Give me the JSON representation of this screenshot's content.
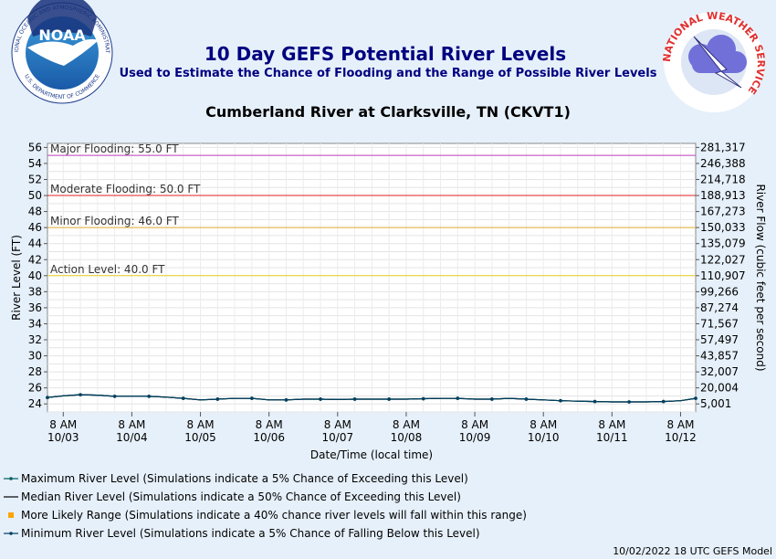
{
  "header": {
    "title": "10 Day GEFS Potential River Levels",
    "subtitle": "Used to Estimate the Chance of Flooding and the Range of Possible River Levels",
    "location": "Cumberland River at Clarksville, TN (CKVT1)"
  },
  "logos": {
    "noaa_text": "NOAA",
    "noaa_ring": "NATIONAL OCEANIC AND ATMOSPHERIC ADMINISTRATION",
    "noaa_ring_bottom": "U.S. DEPARTMENT OF COMMERCE",
    "nws_ring": "NATIONAL WEATHER SERVICE"
  },
  "footer": {
    "model_run": "10/02/2022 18 UTC GEFS Model"
  },
  "colors": {
    "major": "#c040c0",
    "moderate": "#e02020",
    "minor": "#e0b030",
    "action": "#e8d020",
    "series": "#006060",
    "range": "#ffa500"
  },
  "chart_data": {
    "type": "line",
    "xlabel": "Date/Time (local time)",
    "ylabel": "River Level (FT)",
    "ylabel_right": "River Flow (cubic feet per second)",
    "ylim": [
      23,
      56.5
    ],
    "yticks": [
      24,
      26,
      28,
      30,
      32,
      34,
      36,
      38,
      40,
      42,
      44,
      46,
      48,
      50,
      52,
      54,
      56
    ],
    "right_ticks": [
      {
        "stage": 24,
        "label": "5,001"
      },
      {
        "stage": 26,
        "label": "20,004"
      },
      {
        "stage": 28,
        "label": "32,007"
      },
      {
        "stage": 30,
        "label": "43,857"
      },
      {
        "stage": 32,
        "label": "57,497"
      },
      {
        "stage": 34,
        "label": "71,567"
      },
      {
        "stage": 36,
        "label": "87,274"
      },
      {
        "stage": 38,
        "label": "99,266"
      },
      {
        "stage": 40,
        "label": "110,907"
      },
      {
        "stage": 42,
        "label": "122,027"
      },
      {
        "stage": 44,
        "label": "135,079"
      },
      {
        "stage": 46,
        "label": "150,033"
      },
      {
        "stage": 48,
        "label": "167,273"
      },
      {
        "stage": 50,
        "label": "188,913"
      },
      {
        "stage": 52,
        "label": "214,718"
      },
      {
        "stage": 54,
        "label": "246,388"
      },
      {
        "stage": 56,
        "label": "281,317"
      }
    ],
    "x_range_days": [
      -0.23,
      9.22
    ],
    "xticks": [
      {
        "day": 0,
        "line1": "8 AM",
        "line2": "10/03"
      },
      {
        "day": 1,
        "line1": "8 AM",
        "line2": "10/04"
      },
      {
        "day": 2,
        "line1": "8 AM",
        "line2": "10/05"
      },
      {
        "day": 3,
        "line1": "8 AM",
        "line2": "10/06"
      },
      {
        "day": 4,
        "line1": "8 AM",
        "line2": "10/07"
      },
      {
        "day": 5,
        "line1": "8 AM",
        "line2": "10/08"
      },
      {
        "day": 6,
        "line1": "8 AM",
        "line2": "10/09"
      },
      {
        "day": 7,
        "line1": "8 AM",
        "line2": "10/10"
      },
      {
        "day": 8,
        "line1": "8 AM",
        "line2": "10/11"
      },
      {
        "day": 9,
        "line1": "8 AM",
        "line2": "10/12"
      }
    ],
    "thresholds": [
      {
        "name": "major",
        "label": "Major Flooding: 55.0 FT",
        "value": 55.0
      },
      {
        "name": "moderate",
        "label": "Moderate Flooding: 50.0 FT",
        "value": 50.0
      },
      {
        "name": "minor",
        "label": "Minor Flooding: 46.0 FT",
        "value": 46.0
      },
      {
        "name": "action",
        "label": "Action Level: 40.0 FT",
        "value": 40.0
      }
    ],
    "series": [
      {
        "name": "Maximum River Level (Simulations indicate a 5% Chance of Exceeding this Level)",
        "marker": "dot",
        "x": [
          -0.23,
          0.0,
          0.25,
          0.5,
          0.75,
          1.0,
          1.25,
          1.5,
          1.75,
          2.0,
          2.25,
          2.5,
          2.75,
          3.0,
          3.25,
          3.5,
          3.75,
          4.0,
          4.25,
          4.5,
          4.75,
          5.0,
          5.25,
          5.5,
          5.75,
          6.0,
          6.25,
          6.5,
          6.75,
          7.0,
          7.25,
          7.5,
          7.75,
          8.0,
          8.25,
          8.5,
          8.75,
          9.0,
          9.22
        ],
        "y": [
          24.8,
          25.0,
          25.15,
          25.1,
          24.95,
          24.95,
          24.95,
          24.85,
          24.7,
          24.5,
          24.6,
          24.7,
          24.7,
          24.5,
          24.5,
          24.6,
          24.6,
          24.55,
          24.6,
          24.6,
          24.6,
          24.6,
          24.65,
          24.7,
          24.7,
          24.6,
          24.6,
          24.7,
          24.6,
          24.5,
          24.4,
          24.35,
          24.3,
          24.25,
          24.25,
          24.25,
          24.3,
          24.4,
          24.7
        ]
      },
      {
        "name": "Median River Level (Simulations indicate a 50% Chance of Exceeding this Level)",
        "marker": "none",
        "x": [
          -0.23,
          0.0,
          0.25,
          0.5,
          0.75,
          1.0,
          1.25,
          1.5,
          1.75,
          2.0,
          2.25,
          2.5,
          2.75,
          3.0,
          3.25,
          3.5,
          3.75,
          4.0,
          4.25,
          4.5,
          4.75,
          5.0,
          5.25,
          5.5,
          5.75,
          6.0,
          6.25,
          6.5,
          6.75,
          7.0,
          7.25,
          7.5,
          7.75,
          8.0,
          8.25,
          8.5,
          8.75,
          9.0,
          9.22
        ],
        "y": [
          24.8,
          25.0,
          25.15,
          25.1,
          24.95,
          24.95,
          24.95,
          24.85,
          24.7,
          24.5,
          24.6,
          24.7,
          24.7,
          24.5,
          24.5,
          24.6,
          24.6,
          24.55,
          24.6,
          24.6,
          24.6,
          24.6,
          24.65,
          24.7,
          24.7,
          24.6,
          24.6,
          24.7,
          24.6,
          24.5,
          24.4,
          24.35,
          24.3,
          24.25,
          24.25,
          24.25,
          24.3,
          24.4,
          24.7
        ]
      },
      {
        "name": "More Likely Range (Simulations indicate a 40% chance river levels will fall within this range)",
        "marker": "square"
      },
      {
        "name": "Minimum River Level (Simulations indicate a 5% Chance of Falling Below this Level)",
        "marker": "dot",
        "x": [
          -0.23,
          0.0,
          0.25,
          0.5,
          0.75,
          1.0,
          1.25,
          1.5,
          1.75,
          2.0,
          2.25,
          2.5,
          2.75,
          3.0,
          3.25,
          3.5,
          3.75,
          4.0,
          4.25,
          4.5,
          4.75,
          5.0,
          5.25,
          5.5,
          5.75,
          6.0,
          6.25,
          6.5,
          6.75,
          7.0,
          7.25,
          7.5,
          7.75,
          8.0,
          8.25,
          8.5,
          8.75,
          9.0,
          9.22
        ],
        "y": [
          24.8,
          25.0,
          25.15,
          25.1,
          24.95,
          24.95,
          24.95,
          24.85,
          24.7,
          24.5,
          24.6,
          24.7,
          24.7,
          24.5,
          24.5,
          24.6,
          24.6,
          24.55,
          24.6,
          24.6,
          24.6,
          24.6,
          24.65,
          24.7,
          24.7,
          24.6,
          24.6,
          24.7,
          24.6,
          24.5,
          24.4,
          24.35,
          24.3,
          24.25,
          24.25,
          24.25,
          24.3,
          24.4,
          24.7
        ]
      }
    ]
  }
}
